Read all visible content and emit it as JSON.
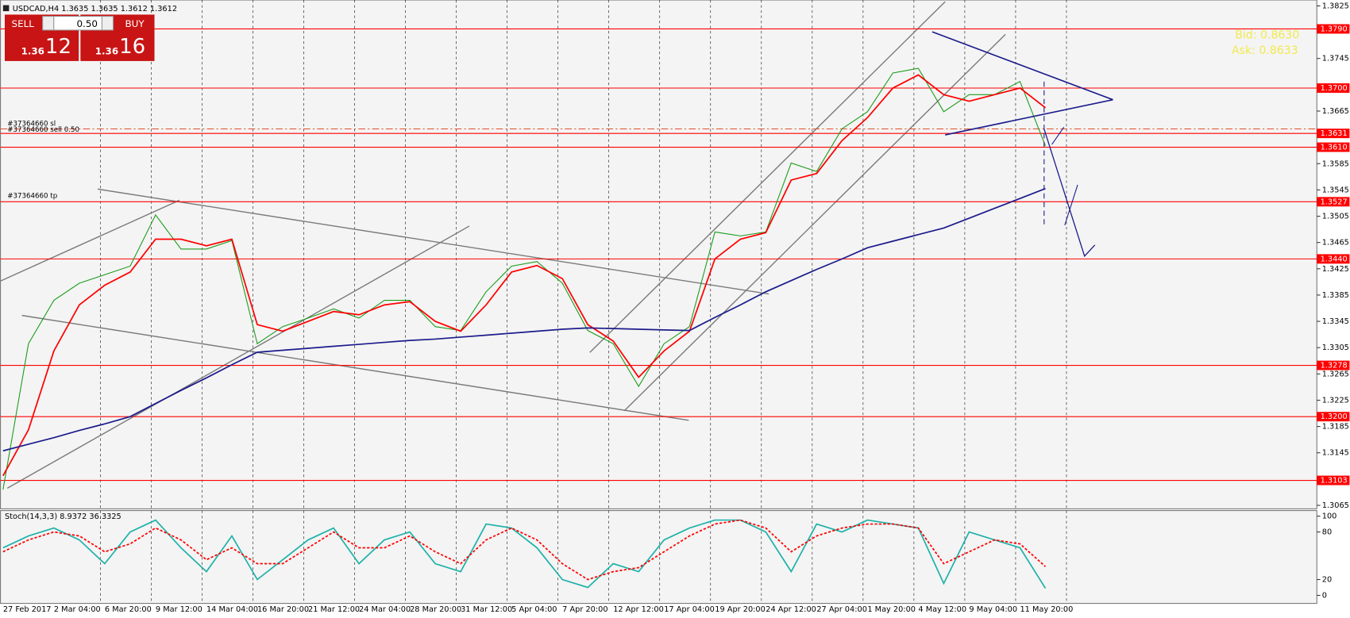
{
  "chart_data": [
    {
      "type": "line",
      "title": "USDCAD,H4  1.3635 1.3635 1.3612 1.3612",
      "categories": [
        "27 Feb 2017",
        null,
        "2 Mar 04:00",
        null,
        "6 Mar 20:00",
        null,
        "9 Mar 12:00",
        null,
        "14 Mar 04:00",
        null,
        "16 Mar 20:00",
        null,
        "21 Mar 12:00",
        null,
        "24 Mar 04:00",
        null,
        "28 Mar 20:00",
        null,
        "31 Mar 12:00",
        null,
        "5 Apr 04:00",
        null,
        "7 Apr 20:00",
        null,
        "12 Apr 12:00",
        null,
        "17 Apr 04:00",
        null,
        "19 Apr 20:00",
        null,
        "24 Apr 12:00",
        null,
        "27 Apr 04:00",
        null,
        "1 May 20:00",
        null,
        "4 May 12:00",
        null,
        "9 May 04:00",
        null,
        "11 May 20:00",
        null
      ],
      "series": [
        {
          "color": "#1a9c1a",
          "values": [
            1.3089,
            1.3311,
            1.3377,
            1.3403,
            1.3416,
            1.3429,
            1.3507,
            1.3455,
            1.3455,
            1.3468,
            1.3311,
            1.3337,
            1.335,
            1.3364,
            1.335,
            1.3377,
            1.3377,
            1.3337,
            1.3331,
            1.339,
            1.3429,
            1.3436,
            1.3403,
            1.3331,
            1.3311,
            1.3246,
            1.3311,
            1.3337,
            1.3481,
            1.3475,
            1.3481,
            1.3586,
            1.3573,
            1.3638,
            1.3664,
            1.3723,
            1.373,
            1.3664,
            1.369,
            1.369,
            1.371,
            1.3612
          ]
        },
        {
          "color": "#ff0000",
          "values": [
            1.311,
            1.318,
            1.33,
            1.337,
            1.34,
            1.342,
            1.347,
            1.347,
            1.346,
            1.347,
            1.334,
            1.333,
            1.3345,
            1.336,
            1.3355,
            1.337,
            1.3375,
            1.3345,
            1.333,
            1.337,
            1.342,
            1.343,
            1.341,
            1.334,
            1.3315,
            1.326,
            1.33,
            1.333,
            1.344,
            1.347,
            1.348,
            1.356,
            1.357,
            1.362,
            1.3655,
            1.37,
            1.372,
            1.369,
            1.368,
            1.369,
            1.37,
            1.367
          ]
        },
        {
          "color": "#1c1c8c",
          "values": [
            1.3148,
            1.3158,
            1.3168,
            1.3179,
            1.3189,
            1.32,
            1.322,
            1.324,
            1.3259,
            1.3279,
            1.3298,
            1.3301,
            1.3304,
            1.3307,
            1.331,
            1.3313,
            1.3316,
            1.3318,
            1.3321,
            1.3324,
            1.3327,
            1.333,
            1.3333,
            1.3335,
            1.3334,
            1.3333,
            1.3332,
            1.3331,
            1.3351,
            1.337,
            1.339,
            1.3407,
            1.3424,
            1.344,
            1.3457,
            1.3467,
            1.3477,
            1.3487,
            1.3502,
            1.3517,
            1.3532,
            1.3547
          ]
        }
      ],
      "ylim": [
        1.3061,
        1.3834
      ],
      "yticks": [
        1.3825,
        1.3745,
        1.3665,
        1.3585,
        1.3545,
        1.3505,
        1.3465,
        1.3425,
        1.3385,
        1.3345,
        1.3305,
        1.3265,
        1.3225,
        1.3185,
        1.3145,
        1.3065
      ],
      "grid": true,
      "levels": {
        "color": "#ff0000",
        "values": [
          1.379,
          1.37,
          1.3631,
          1.361,
          1.3527,
          1.344,
          1.3278,
          1.32,
          1.3103
        ],
        "value_labels": [
          "1.3790",
          "1.3700",
          "1.3631",
          "1.3610",
          "1.3527",
          "1.3440",
          "1.3278",
          "1.3200",
          "1.3103"
        ]
      }
    },
    {
      "type": "line",
      "title": "Stoch(14,3,3) 8.9372 36.3325",
      "series": [
        {
          "color": "#20b2aa",
          "values": [
            60,
            75,
            85,
            70,
            40,
            80,
            95,
            60,
            30,
            75,
            20,
            45,
            70,
            85,
            40,
            70,
            80,
            40,
            30,
            90,
            85,
            60,
            20,
            10,
            40,
            30,
            70,
            85,
            95,
            95,
            80,
            30,
            90,
            80,
            95,
            90,
            85,
            15,
            80,
            70,
            60,
            8.9372
          ]
        },
        {
          "color": "#ff0000",
          "dashed": true,
          "values": [
            55,
            70,
            80,
            75,
            55,
            65,
            85,
            70,
            45,
            60,
            40,
            40,
            60,
            80,
            60,
            60,
            75,
            55,
            40,
            70,
            85,
            70,
            40,
            20,
            30,
            35,
            55,
            75,
            90,
            95,
            85,
            55,
            75,
            85,
            90,
            90,
            85,
            40,
            55,
            70,
            65,
            36.3325
          ]
        }
      ],
      "ylim": [
        -9,
        107
      ],
      "yticks": [
        0,
        20,
        80,
        100
      ]
    }
  ],
  "trade_panel": {
    "sell": "SELL",
    "buy": "BUY",
    "lot": "0.50",
    "sell_big": "1.36",
    "sell_pips": "12",
    "buy_big": "1.36",
    "buy_pips": "16"
  },
  "order_labels": [
    "#37364660 sl",
    "#37364660 sell 0.50",
    "#37364660 tp"
  ],
  "quote": {
    "bid": "Bid: 0.8630",
    "ask": "Ask: 0.8633"
  }
}
